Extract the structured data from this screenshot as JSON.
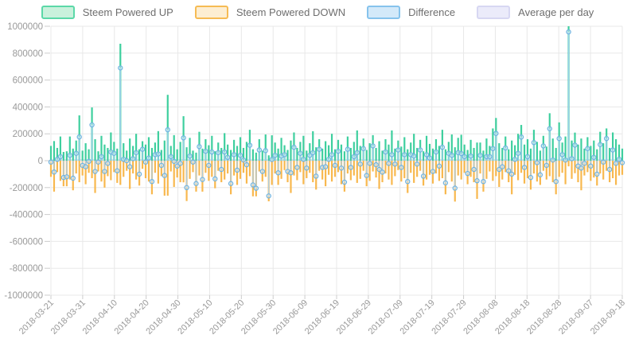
{
  "legend": {
    "items": [
      {
        "label": "Steem Powered UP",
        "fill": "#c9f1dc",
        "border": "#5bd8a8"
      },
      {
        "label": "Steem Powered DOWN",
        "fill": "#fdeed2",
        "border": "#f6bb54"
      },
      {
        "label": "Difference",
        "fill": "#d3e9f9",
        "border": "#86c3ec"
      },
      {
        "label": "Average per day",
        "fill": "#ebebfa",
        "border": "#d7d7f2"
      }
    ]
  },
  "axis_style": {
    "tick_text_color": "#999999",
    "grid_color": "#e8e8e8",
    "tick_mark_color": "#cccccc"
  },
  "chart_data": {
    "type": "bar",
    "title": "",
    "xlabel": "",
    "ylabel": "",
    "ylim": [
      -1000000,
      1000000
    ],
    "grid": true,
    "legend_position": "top",
    "x_axis": {
      "start_date": "2018-03-21",
      "end_date": "2018-09-18",
      "points": 182,
      "step_days": 1
    },
    "x_tick_labels": [
      "2018-03-21",
      "2018-03-31",
      "2018-04-10",
      "2018-04-20",
      "2018-04-30",
      "2018-05-10",
      "2018-05-20",
      "2018-05-30",
      "2018-06-09",
      "2018-06-19",
      "2018-06-29",
      "2018-07-09",
      "2018-07-19",
      "2018-07-29",
      "2018-08-08",
      "2018-08-18",
      "2018-08-28",
      "2018-09-07",
      "2018-09-18"
    ],
    "y_ticks": [
      1000000,
      800000,
      600000,
      400000,
      200000,
      0,
      -200000,
      -400000,
      -600000,
      -800000,
      -1000000
    ],
    "series": [
      {
        "name": "Steem Powered UP",
        "type": "bar",
        "color": "#3ecf9e",
        "values": [
          110000,
          146000,
          95000,
          180000,
          65000,
          70000,
          180000,
          90000,
          150000,
          337000,
          75000,
          130000,
          85000,
          396000,
          160000,
          70000,
          185000,
          120000,
          95000,
          210000,
          140000,
          90000,
          870000,
          130000,
          75000,
          165000,
          110000,
          200000,
          85000,
          145000,
          120000,
          175000,
          95000,
          135000,
          220000,
          80000,
          150000,
          490000,
          110000,
          190000,
          85000,
          140000,
          331000,
          100000,
          170000,
          75000,
          60000,
          215000,
          90000,
          160000,
          115000,
          185000,
          70000,
          135000,
          95000,
          205000,
          120000,
          80000,
          155000,
          110000,
          175000,
          95000,
          140000,
          230000,
          85000,
          60000,
          160000,
          75000,
          195000,
          40000,
          189000,
          135000,
          90000,
          170000,
          115000,
          80000,
          150000,
          210000,
          95000,
          140000,
          185000,
          75000,
          130000,
          219000,
          100000,
          160000,
          90000,
          145000,
          115000,
          200000,
          85000,
          155000,
          120000,
          70000,
          180000,
          95000,
          140000,
          225000,
          110000,
          165000,
          80000,
          130000,
          190000,
          95000,
          145000,
          75000,
          160000,
          120000,
          225000,
          90000,
          150000,
          105000,
          175000,
          85000,
          135000,
          200000,
          95000,
          155000,
          70000,
          185000,
          125000,
          90000,
          160000,
          110000,
          230000,
          85000,
          140000,
          195000,
          100000,
          170000,
          193000,
          120000,
          80000,
          155000,
          95000,
          135000,
          135000,
          75000,
          165000,
          110000,
          240000,
          318000,
          130000,
          95000,
          180000,
          85000,
          150000,
          115000,
          200000,
          266000,
          120000,
          160000,
          90000,
          230000,
          140000,
          75000,
          185000,
          105000,
          353000,
          165000,
          95000,
          285000,
          135000,
          180000,
          1000000,
          150000,
          209000,
          120000,
          165000,
          90000,
          175000,
          110000,
          150000,
          85000,
          215000,
          130000,
          240000,
          95000,
          210000,
          160000,
          120000,
          90000
        ]
      },
      {
        "name": "Steem Powered DOWN",
        "type": "bar",
        "color": "#f8b84e",
        "values": [
          -120000,
          -230000,
          -85000,
          -150000,
          -190000,
          -190000,
          -140000,
          -220000,
          -95000,
          -160000,
          -110000,
          -175000,
          -90000,
          -130000,
          -240000,
          -80000,
          -155000,
          -200000,
          -115000,
          -145000,
          -85000,
          -165000,
          -180000,
          -120000,
          -75000,
          -210000,
          -95000,
          -140000,
          -185000,
          -60000,
          -130000,
          -155000,
          -250000,
          -90000,
          -170000,
          -115000,
          -260000,
          -260000,
          -80000,
          -195000,
          -125000,
          -160000,
          -161000,
          -300000,
          -135000,
          -85000,
          -230000,
          -110000,
          -230000,
          -90000,
          -150000,
          -120000,
          -205000,
          -75000,
          -160000,
          -140000,
          -95000,
          -250000,
          -110000,
          -180000,
          -135000,
          -90000,
          -170000,
          -115000,
          -265000,
          -265000,
          -80000,
          -155000,
          -120000,
          -302000,
          -180000,
          -95000,
          -180000,
          -135000,
          -70000,
          -160000,
          -240000,
          -110000,
          -145000,
          -85000,
          -175000,
          -130000,
          -90000,
          -160000,
          -215000,
          -75000,
          -140000,
          -190000,
          -105000,
          -155000,
          -120000,
          -85000,
          -175000,
          -230000,
          -95000,
          -145000,
          -110000,
          -165000,
          -135000,
          -75000,
          -190000,
          -150000,
          -80000,
          -125000,
          -210000,
          -160000,
          -95000,
          -140000,
          -180000,
          -115000,
          -70000,
          -155000,
          -130000,
          -240000,
          -90000,
          -165000,
          -120000,
          -75000,
          -185000,
          -140000,
          -105000,
          -170000,
          -95000,
          -150000,
          -130000,
          -250000,
          -85000,
          -155000,
          -304000,
          -110000,
          -140000,
          -90000,
          -175000,
          -120000,
          -160000,
          -284000,
          -95000,
          -230000,
          -135000,
          -80000,
          -150000,
          -115000,
          -195000,
          -140000,
          -85000,
          -160000,
          -250000,
          -105000,
          -145000,
          -90000,
          -170000,
          -130000,
          -215000,
          -95000,
          -155000,
          -180000,
          -75000,
          -140000,
          -115000,
          -160000,
          -250000,
          -120000,
          -90000,
          -175000,
          -42000,
          -135000,
          -93000,
          -160000,
          -220000,
          -110000,
          -85000,
          -150000,
          -125000,
          -185000,
          -95000,
          -140000,
          -75000,
          -160000,
          -130000,
          -180000,
          -110000,
          -105000
        ]
      },
      {
        "name": "Difference",
        "type": "scatter-stem",
        "stem_color": "#a5cff2",
        "marker_color": "#6fb3e0",
        "marker_fill": "#d3e9f9",
        "formula": "up + down",
        "values": [
          -10000,
          -84000,
          10000,
          30000,
          -125000,
          -120000,
          40000,
          -130000,
          55000,
          177000,
          -35000,
          -45000,
          -5000,
          266000,
          -80000,
          -10000,
          30000,
          -80000,
          -20000,
          65000,
          55000,
          -75000,
          690000,
          10000,
          0,
          -45000,
          15000,
          60000,
          -100000,
          85000,
          -10000,
          20000,
          -155000,
          45000,
          50000,
          -35000,
          -110000,
          230000,
          30000,
          -5000,
          -40000,
          -20000,
          170000,
          -200000,
          35000,
          -10000,
          -170000,
          105000,
          -140000,
          70000,
          -35000,
          65000,
          -135000,
          60000,
          -65000,
          65000,
          25000,
          -170000,
          45000,
          -70000,
          40000,
          5000,
          -30000,
          115000,
          -180000,
          -205000,
          80000,
          -80000,
          75000,
          -262000,
          9000,
          40000,
          -90000,
          35000,
          45000,
          -80000,
          -90000,
          100000,
          -50000,
          55000,
          10000,
          -55000,
          40000,
          59000,
          -115000,
          85000,
          -50000,
          -45000,
          10000,
          45000,
          -35000,
          70000,
          -55000,
          -160000,
          85000,
          -50000,
          30000,
          60000,
          -25000,
          90000,
          -110000,
          -20000,
          110000,
          -30000,
          -65000,
          -85000,
          65000,
          -20000,
          45000,
          -25000,
          80000,
          -50000,
          45000,
          -155000,
          45000,
          35000,
          -25000,
          80000,
          -115000,
          45000,
          20000,
          -80000,
          65000,
          -40000,
          100000,
          -165000,
          55000,
          40000,
          -204000,
          60000,
          53000,
          30000,
          -95000,
          35000,
          -65000,
          -149000,
          40000,
          -155000,
          30000,
          30000,
          90000,
          203000,
          -65000,
          -45000,
          95000,
          -75000,
          -100000,
          10000,
          55000,
          176000,
          -50000,
          30000,
          -125000,
          135000,
          -15000,
          -105000,
          110000,
          -35000,
          238000,
          5000,
          -155000,
          165000,
          45000,
          5000,
          958000,
          15000,
          116000,
          -40000,
          -55000,
          -20000,
          90000,
          -40000,
          25000,
          -100000,
          120000,
          -10000,
          165000,
          -65000,
          80000,
          -20000,
          10000,
          -15000
        ]
      },
      {
        "name": "Average per day",
        "type": "line",
        "color": "#d7d7f2",
        "value": 5800
      }
    ]
  }
}
